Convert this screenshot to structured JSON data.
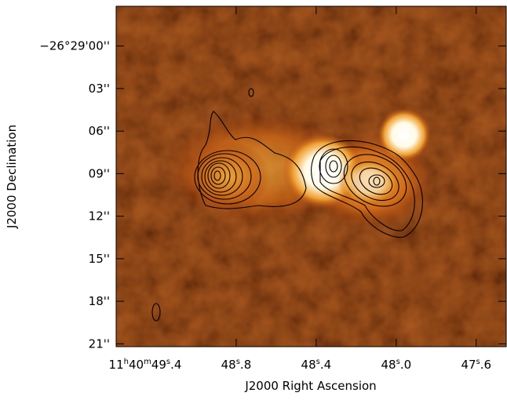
{
  "chart_data": {
    "type": "image",
    "xlabel": "J2000 Right Ascension",
    "ylabel": "J2000 Declination",
    "xlim": [
      49.4,
      47.45
    ],
    "ylim": [
      21.2,
      -2.8
    ],
    "xticks": [
      {
        "value": 49.4,
        "label": "11h40m49s.4"
      },
      {
        "value": 48.8,
        "label": "48s.8"
      },
      {
        "value": 48.4,
        "label": "48s.4"
      },
      {
        "value": 48.0,
        "label": "48s.0"
      },
      {
        "value": 47.6,
        "label": "47s.6"
      }
    ],
    "yticks": [
      {
        "value": 0,
        "label": "−26°29'00''"
      },
      {
        "value": 3,
        "label": "03''"
      },
      {
        "value": 6,
        "label": "06''"
      },
      {
        "value": 9,
        "label": "09''"
      },
      {
        "value": 12,
        "label": "12''"
      },
      {
        "value": 15,
        "label": "15''"
      },
      {
        "value": 18,
        "label": "18''"
      },
      {
        "value": 21,
        "label": "21''"
      }
    ]
  }
}
